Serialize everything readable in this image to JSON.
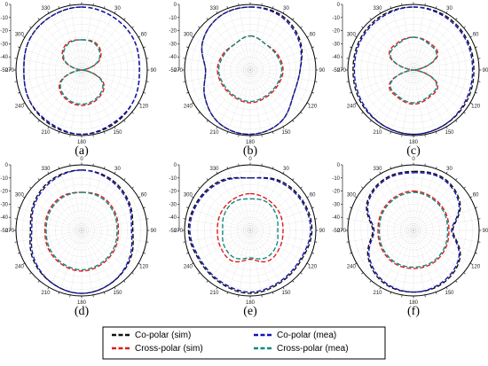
{
  "chart_data": [
    {
      "type": "polar-line",
      "panel_label": "(a)",
      "r_axis": {
        "min": -50,
        "max": 0,
        "ticks": [
          0,
          -10,
          -20,
          -30,
          -40,
          -50
        ]
      },
      "angle_ticks": [
        0,
        30,
        60,
        90,
        120,
        150,
        180,
        210,
        240,
        270,
        300,
        330
      ],
      "series": [
        {
          "name": "Co-polar (sim)",
          "color": "#111111",
          "theta": [
            0,
            30,
            60,
            90,
            120,
            150,
            180,
            210,
            240,
            270,
            300,
            330
          ],
          "r_db": [
            -2,
            -3,
            -4,
            -6,
            -4,
            -2,
            -1,
            -2,
            -4,
            -6,
            -4,
            -3
          ]
        },
        {
          "name": "Co-polar (mea)",
          "color": "#1414b4",
          "theta": [
            0,
            30,
            60,
            90,
            120,
            150,
            180,
            210,
            240,
            270,
            300,
            330
          ],
          "r_db": [
            -2,
            -3,
            -4,
            -6,
            -4,
            -3,
            -1,
            -3,
            -4,
            -6,
            -4,
            -3
          ]
        },
        {
          "name": "Cross-polar (sim)",
          "color": "#e01b1b",
          "theta": [
            0,
            30,
            60,
            90,
            120,
            150,
            180,
            210,
            240,
            270,
            300,
            330
          ],
          "r_db": [
            -27,
            -27,
            -34,
            -50,
            -31,
            -25,
            -23,
            -25,
            -31,
            -50,
            -34,
            -27
          ]
        },
        {
          "name": "Cross-polar (mea)",
          "color": "#13897f",
          "theta": [
            0,
            30,
            60,
            90,
            120,
            150,
            180,
            210,
            240,
            270,
            300,
            330
          ],
          "r_db": [
            -27,
            -28,
            -35,
            -50,
            -32,
            -26,
            -24,
            -26,
            -32,
            -50,
            -35,
            -28
          ]
        }
      ]
    },
    {
      "type": "polar-line",
      "panel_label": "(b)",
      "r_axis": {
        "min": -50,
        "max": 0,
        "ticks": [
          0,
          -10,
          -20,
          -30,
          -40,
          -50
        ]
      },
      "angle_ticks": [
        0,
        30,
        60,
        90,
        120,
        150,
        180,
        210,
        240,
        270,
        300,
        330
      ],
      "series": [
        {
          "name": "Co-polar (sim)",
          "color": "#111111",
          "theta": [
            0,
            30,
            60,
            90,
            120,
            150,
            180,
            210,
            240,
            270,
            300,
            330
          ],
          "r_db": [
            -2,
            -2,
            -6,
            -12,
            -12,
            -4,
            -1,
            -3,
            -10,
            -16,
            -8,
            -3
          ]
        },
        {
          "name": "Co-polar (mea)",
          "color": "#1414b4",
          "theta": [
            0,
            30,
            60,
            90,
            120,
            150,
            180,
            210,
            240,
            270,
            300,
            330
          ],
          "r_db": [
            -2,
            -3,
            -7,
            -12,
            -12,
            -4,
            -1,
            -3,
            -10,
            -16,
            -8,
            -3
          ]
        },
        {
          "name": "Cross-polar (sim)",
          "color": "#e01b1b",
          "theta": [
            0,
            30,
            60,
            90,
            120,
            150,
            180,
            210,
            240,
            270,
            300,
            330
          ],
          "r_db": [
            -24,
            -27,
            -26,
            -25,
            -26,
            -26,
            -25,
            -26,
            -26,
            -25,
            -26,
            -27
          ]
        },
        {
          "name": "Cross-polar (mea)",
          "color": "#13897f",
          "theta": [
            0,
            30,
            60,
            90,
            120,
            150,
            180,
            210,
            240,
            270,
            300,
            330
          ],
          "r_db": [
            -24,
            -27,
            -27,
            -26,
            -27,
            -27,
            -26,
            -27,
            -27,
            -26,
            -27,
            -27
          ]
        }
      ]
    },
    {
      "type": "polar-line",
      "panel_label": "(c)",
      "r_axis": {
        "min": -50,
        "max": 0,
        "ticks": [
          0,
          -10,
          -20,
          -30,
          -40,
          -50
        ]
      },
      "angle_ticks": [
        0,
        30,
        60,
        90,
        120,
        150,
        180,
        210,
        240,
        270,
        300,
        330
      ],
      "series": [
        {
          "name": "Co-polar (sim)",
          "color": "#111111",
          "theta": [
            0,
            30,
            60,
            90,
            120,
            150,
            180,
            210,
            240,
            270,
            300,
            330
          ],
          "r_db": [
            -2,
            -2,
            -3,
            -4,
            -3,
            -2,
            -1,
            -2,
            -3,
            -4,
            -3,
            -2
          ]
        },
        {
          "name": "Co-polar (mea)",
          "color": "#1414b4",
          "theta": [
            0,
            30,
            60,
            90,
            120,
            150,
            180,
            210,
            240,
            270,
            300,
            330
          ],
          "r_db": [
            -2,
            -3,
            -4,
            -5,
            -4,
            -2,
            -1,
            -2,
            -4,
            -5,
            -4,
            -3
          ]
        },
        {
          "name": "Cross-polar (sim)",
          "color": "#e01b1b",
          "theta": [
            0,
            30,
            60,
            90,
            120,
            150,
            180,
            210,
            240,
            270,
            300,
            330
          ],
          "r_db": [
            -25,
            -26,
            -29,
            -50,
            -29,
            -26,
            -24,
            -26,
            -29,
            -50,
            -29,
            -26
          ]
        },
        {
          "name": "Cross-polar (mea)",
          "color": "#13897f",
          "theta": [
            0,
            30,
            60,
            90,
            120,
            150,
            180,
            210,
            240,
            270,
            300,
            330
          ],
          "r_db": [
            -25,
            -27,
            -30,
            -50,
            -30,
            -27,
            -25,
            -27,
            -30,
            -50,
            -30,
            -27
          ]
        }
      ]
    },
    {
      "type": "polar-line",
      "panel_label": "(d)",
      "r_axis": {
        "min": -50,
        "max": 0,
        "ticks": [
          0,
          -10,
          -20,
          -30,
          -40,
          -50
        ]
      },
      "angle_ticks": [
        0,
        30,
        60,
        90,
        120,
        150,
        180,
        210,
        240,
        270,
        300,
        330
      ],
      "series": [
        {
          "name": "Co-polar (sim)",
          "color": "#111111",
          "theta": [
            0,
            30,
            60,
            90,
            120,
            150,
            180,
            210,
            240,
            270,
            300,
            330
          ],
          "r_db": [
            -4,
            -5,
            -8,
            -11,
            -7,
            -4,
            -2,
            -4,
            -7,
            -11,
            -8,
            -5
          ]
        },
        {
          "name": "Co-polar (mea)",
          "color": "#1414b4",
          "theta": [
            0,
            30,
            60,
            90,
            120,
            150,
            180,
            210,
            240,
            270,
            300,
            330
          ],
          "r_db": [
            -4,
            -6,
            -9,
            -12,
            -8,
            -4,
            -2,
            -4,
            -8,
            -12,
            -9,
            -6
          ]
        },
        {
          "name": "Cross-polar (sim)",
          "color": "#e01b1b",
          "theta": [
            0,
            30,
            60,
            90,
            120,
            150,
            180,
            210,
            240,
            270,
            300,
            330
          ],
          "r_db": [
            -21,
            -20,
            -21,
            -22,
            -21,
            -20,
            -19,
            -20,
            -21,
            -22,
            -21,
            -20
          ]
        },
        {
          "name": "Cross-polar (mea)",
          "color": "#13897f",
          "theta": [
            0,
            30,
            60,
            90,
            120,
            150,
            180,
            210,
            240,
            270,
            300,
            330
          ],
          "r_db": [
            -21,
            -21,
            -22,
            -23,
            -22,
            -21,
            -20,
            -21,
            -22,
            -23,
            -22,
            -21
          ]
        }
      ]
    },
    {
      "type": "polar-line",
      "panel_label": "(e)",
      "r_axis": {
        "min": -50,
        "max": 0,
        "ticks": [
          0,
          -10,
          -20,
          -30,
          -40,
          -50
        ]
      },
      "angle_ticks": [
        0,
        30,
        60,
        90,
        120,
        150,
        180,
        210,
        240,
        270,
        300,
        330
      ],
      "series": [
        {
          "name": "Co-polar (sim)",
          "color": "#111111",
          "theta": [
            0,
            30,
            60,
            90,
            120,
            150,
            180,
            210,
            240,
            270,
            300,
            330
          ],
          "r_db": [
            -10,
            -6,
            -4,
            -3,
            -5,
            -4,
            -2,
            -4,
            -5,
            -3,
            -4,
            -6
          ]
        },
        {
          "name": "Co-polar (mea)",
          "color": "#1414b4",
          "theta": [
            0,
            30,
            60,
            90,
            120,
            150,
            180,
            210,
            240,
            270,
            300,
            330
          ],
          "r_db": [
            -10,
            -7,
            -5,
            -4,
            -6,
            -5,
            -3,
            -5,
            -6,
            -4,
            -5,
            -7
          ]
        },
        {
          "name": "Cross-polar (sim)",
          "color": "#e01b1b",
          "theta": [
            0,
            30,
            60,
            90,
            120,
            150,
            180,
            210,
            240,
            270,
            300,
            330
          ],
          "r_db": [
            -22,
            -23,
            -24,
            -25,
            -24,
            -23,
            -28,
            -23,
            -24,
            -25,
            -24,
            -23
          ]
        },
        {
          "name": "Cross-polar (mea)",
          "color": "#13897f",
          "theta": [
            0,
            30,
            60,
            90,
            120,
            150,
            180,
            210,
            240,
            270,
            300,
            330
          ],
          "r_db": [
            -26,
            -25,
            -27,
            -29,
            -27,
            -26,
            -29,
            -26,
            -27,
            -29,
            -27,
            -25
          ]
        }
      ]
    },
    {
      "type": "polar-line",
      "panel_label": "(f)",
      "r_axis": {
        "min": -50,
        "max": 0,
        "ticks": [
          0,
          -10,
          -20,
          -30,
          -40,
          -50
        ]
      },
      "angle_ticks": [
        0,
        30,
        60,
        90,
        120,
        150,
        180,
        210,
        240,
        270,
        300,
        330
      ],
      "series": [
        {
          "name": "Co-polar (sim)",
          "color": "#111111",
          "theta": [
            0,
            30,
            60,
            90,
            120,
            150,
            180,
            210,
            240,
            270,
            300,
            330
          ],
          "r_db": [
            -5,
            -4,
            -9,
            -20,
            -9,
            -4,
            -3,
            -4,
            -10,
            -19,
            -9,
            -5
          ]
        },
        {
          "name": "Co-polar (mea)",
          "color": "#1414b4",
          "theta": [
            0,
            30,
            60,
            90,
            120,
            150,
            180,
            210,
            240,
            270,
            300,
            330
          ],
          "r_db": [
            -6,
            -5,
            -10,
            -21,
            -10,
            -5,
            -3,
            -5,
            -11,
            -20,
            -10,
            -6
          ]
        },
        {
          "name": "Cross-polar (sim)",
          "color": "#e01b1b",
          "theta": [
            0,
            30,
            60,
            90,
            120,
            150,
            180,
            210,
            240,
            270,
            300,
            330
          ],
          "r_db": [
            -20,
            -21,
            -22,
            -23,
            -22,
            -21,
            -21,
            -21,
            -22,
            -23,
            -22,
            -21
          ]
        },
        {
          "name": "Cross-polar (mea)",
          "color": "#13897f",
          "theta": [
            0,
            30,
            60,
            90,
            120,
            150,
            180,
            210,
            240,
            270,
            300,
            330
          ],
          "r_db": [
            -21,
            -22,
            -23,
            -24,
            -23,
            -22,
            -22,
            -22,
            -23,
            -24,
            -23,
            -22
          ]
        }
      ]
    }
  ],
  "legend": {
    "items": [
      {
        "label": "Co-polar (sim)",
        "color": "#111111"
      },
      {
        "label": "Co-polar (mea)",
        "color": "#1414b4"
      },
      {
        "label": "Cross-polar (sim)",
        "color": "#e01b1b"
      },
      {
        "label": "Cross-polar (mea)",
        "color": "#13897f"
      }
    ]
  }
}
